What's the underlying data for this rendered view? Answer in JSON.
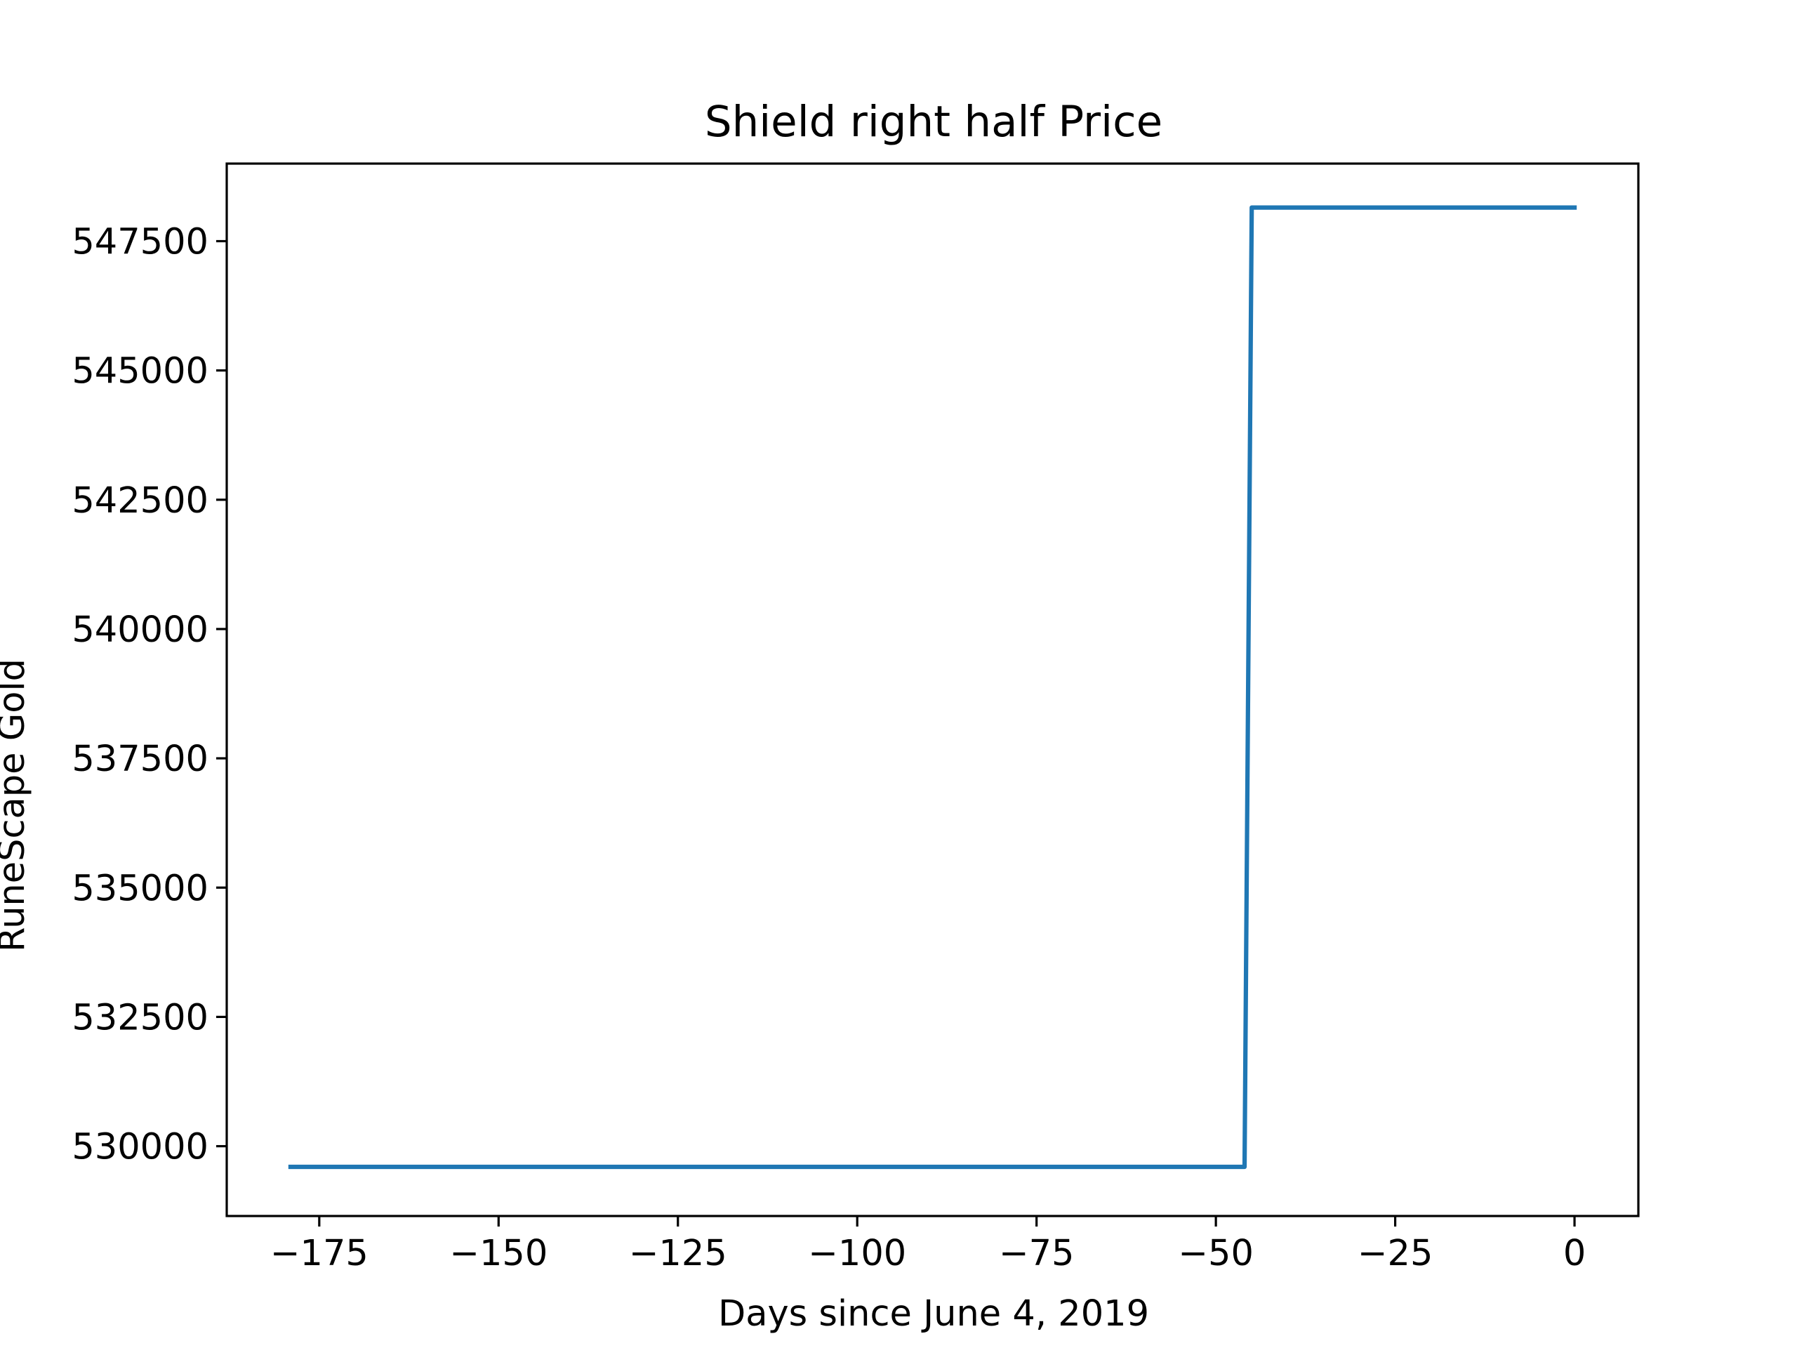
{
  "chart_data": {
    "type": "line",
    "title": "Shield right half Price",
    "xlabel": "Days since June 4, 2019",
    "ylabel": "RuneScape Gold",
    "xlim": [
      -187.9,
      8.9
    ],
    "ylim": [
      528650,
      549000
    ],
    "xticks": [
      -175,
      -150,
      -125,
      -100,
      -75,
      -50,
      -25,
      0
    ],
    "xtick_labels": [
      "−175",
      "−150",
      "−125",
      "−100",
      "−75",
      "−50",
      "−25",
      "0"
    ],
    "yticks": [
      530000,
      532500,
      535000,
      537500,
      540000,
      542500,
      545000,
      547500
    ],
    "ytick_labels": [
      "530000",
      "532500",
      "535000",
      "537500",
      "540000",
      "542500",
      "545000",
      "547500"
    ],
    "grid": false,
    "series": [
      {
        "color": "#1f77b4",
        "x": [
          -179,
          -46,
          -45,
          0
        ],
        "y": [
          529600,
          529600,
          548150,
          548150
        ]
      }
    ]
  }
}
